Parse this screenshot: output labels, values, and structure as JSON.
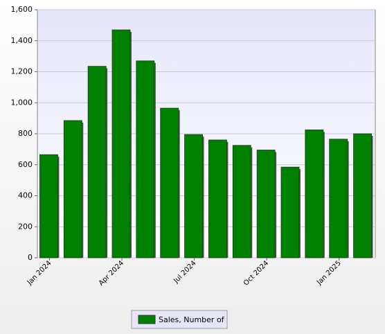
{
  "chart_data": {
    "type": "bar",
    "categories": [
      "Jan 2024",
      null,
      null,
      "Apr 2024",
      null,
      null,
      "Jul 2024",
      null,
      null,
      "Oct 2024",
      null,
      null,
      "Jan 2025",
      null
    ],
    "series": [
      {
        "name": "Sales, Number of",
        "color": "#008000",
        "values": [
          665,
          885,
          1235,
          1470,
          1270,
          965,
          795,
          760,
          725,
          695,
          585,
          825,
          765,
          800
        ]
      }
    ],
    "ylim": [
      0,
      1600
    ],
    "yticks": [
      0,
      200,
      400,
      600,
      800,
      {
        "value": 1000,
        "label": "1,000"
      },
      {
        "value": 1200,
        "label": "1,200"
      },
      {
        "value": 1400,
        "label": "1,400"
      },
      {
        "value": 1600,
        "label": "1,600"
      }
    ],
    "grid": true,
    "legend": "bottom"
  }
}
